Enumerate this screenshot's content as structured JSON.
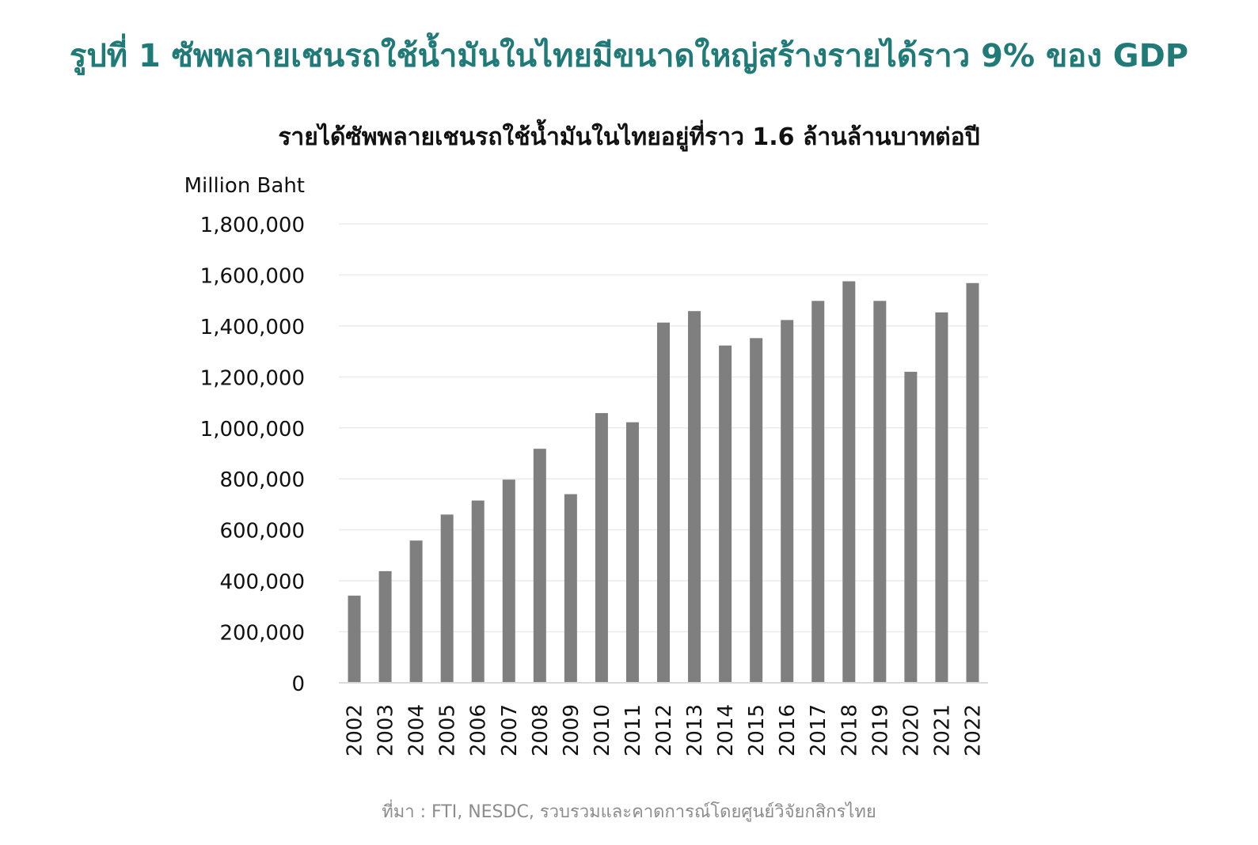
{
  "figure_title": "รูปที่ 1 ซัพพลายเชนรถใช้น้ำมันในไทยมีขนาดใหญ่สร้างรายได้ราว 9% ของ GDP",
  "source_note": "ที่มา : FTI, NESDC, รวบรวมและคาดการณ์โดยศูนย์วิจัยกสิกรไทย",
  "colors": {
    "title": "#1f7a78",
    "bar": "#7f7f7f",
    "grid": "#ebebeb",
    "axis": "#d9d9d9",
    "text": "#111111",
    "source": "#8c8c8c"
  },
  "chart_data": {
    "type": "bar",
    "title": "รายได้ซัพพลายเชนรถใช้น้ำมันในไทยอยู่ที่ราว 1.6 ล้านล้านบาทต่อปี",
    "ylabel": "Million Baht",
    "xlabel": "",
    "ylim": [
      0,
      1800000
    ],
    "yticks": [
      0,
      200000,
      400000,
      600000,
      800000,
      1000000,
      1200000,
      1400000,
      1600000,
      1800000
    ],
    "ytick_labels": [
      "0",
      "200,000",
      "400,000",
      "600,000",
      "800,000",
      "1,000,000",
      "1,200,000",
      "1,400,000",
      "1,600,000",
      "1,800,000"
    ],
    "grid": true,
    "legend": "none",
    "categories": [
      "2002",
      "2003",
      "2004",
      "2005",
      "2006",
      "2007",
      "2008",
      "2009",
      "2010",
      "2011",
      "2012",
      "2013",
      "2014",
      "2015",
      "2016",
      "2017",
      "2018",
      "2019",
      "2020",
      "2021",
      "2022"
    ],
    "values": [
      342000,
      438000,
      558000,
      660000,
      715000,
      797000,
      918000,
      740000,
      1058000,
      1022000,
      1413000,
      1458000,
      1323000,
      1352000,
      1423000,
      1498000,
      1575000,
      1498000,
      1220000,
      1453000,
      1568000
    ]
  }
}
